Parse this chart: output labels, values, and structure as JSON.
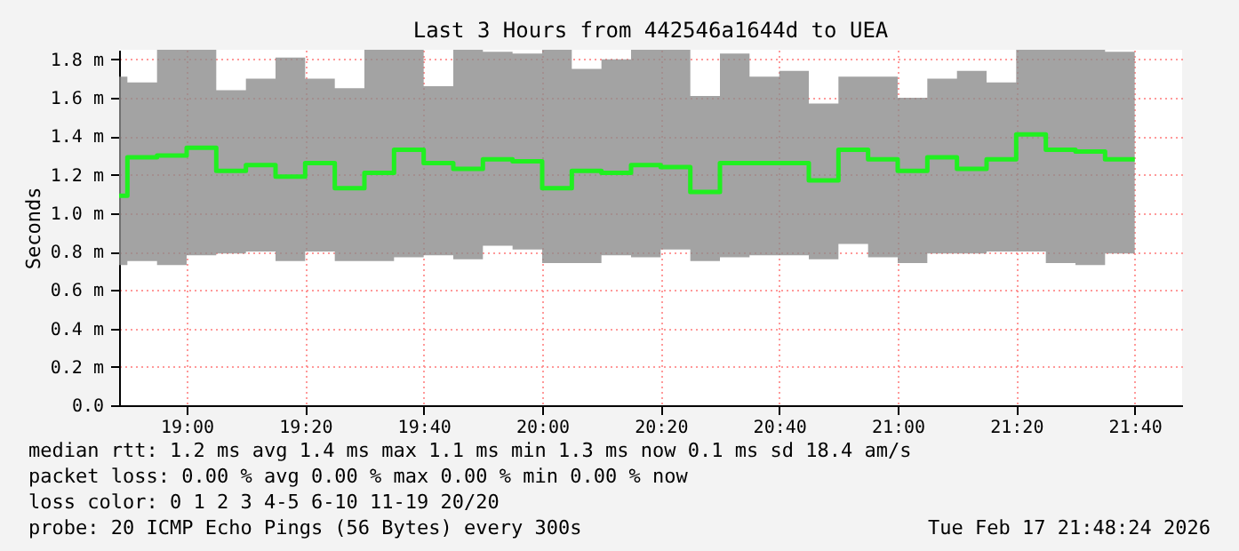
{
  "chart_data": {
    "type": "step",
    "title": "Last 3 Hours from 442546a1644d to UEA",
    "ylabel": "Seconds",
    "x": [
      18.81,
      18.8333,
      18.9167,
      19.0,
      19.0833,
      19.1667,
      19.25,
      19.3333,
      19.4167,
      19.5,
      19.5833,
      19.6667,
      19.75,
      19.8333,
      19.9167,
      20.0,
      20.0833,
      20.1667,
      20.25,
      20.3333,
      20.4167,
      20.5,
      20.5833,
      20.6667,
      20.75,
      20.8333,
      20.9167,
      21.0,
      21.0833,
      21.1667,
      21.25,
      21.3333,
      21.4167,
      21.5,
      21.5833,
      21.6667
    ],
    "series": [
      {
        "color": "#20f020",
        "values": [
          1.09,
          1.29,
          1.3,
          1.34,
          1.22,
          1.25,
          1.19,
          1.26,
          1.13,
          1.21,
          1.33,
          1.26,
          1.23,
          1.28,
          1.27,
          1.13,
          1.22,
          1.21,
          1.25,
          1.24,
          1.11,
          1.26,
          1.26,
          1.26,
          1.17,
          1.33,
          1.28,
          1.22,
          1.29,
          1.23,
          1.28,
          1.41,
          1.33,
          1.32,
          1.28,
          1.28
        ],
        "upper": [
          1.71,
          1.68,
          1.85,
          1.85,
          1.64,
          1.7,
          1.81,
          1.7,
          1.65,
          1.85,
          1.85,
          1.66,
          1.85,
          1.84,
          1.83,
          1.85,
          1.75,
          1.8,
          1.85,
          1.85,
          1.61,
          1.83,
          1.71,
          1.74,
          1.57,
          1.71,
          1.71,
          1.6,
          1.7,
          1.74,
          1.68,
          1.85,
          1.85,
          1.85,
          1.84,
          1.84
        ],
        "lower": [
          0.73,
          0.75,
          0.73,
          0.78,
          0.79,
          0.8,
          0.75,
          0.8,
          0.75,
          0.75,
          0.77,
          0.78,
          0.76,
          0.83,
          0.81,
          0.74,
          0.74,
          0.78,
          0.77,
          0.81,
          0.75,
          0.77,
          0.78,
          0.78,
          0.76,
          0.84,
          0.77,
          0.74,
          0.79,
          0.79,
          0.8,
          0.8,
          0.74,
          0.73,
          0.79,
          0.79
        ]
      }
    ],
    "xlim": [
      18.81,
      21.8
    ],
    "xticks": [
      {
        "value": 19.0,
        "label": "19:00"
      },
      {
        "value": 19.3333,
        "label": "19:20"
      },
      {
        "value": 19.6667,
        "label": "19:40"
      },
      {
        "value": 20.0,
        "label": "20:00"
      },
      {
        "value": 20.3333,
        "label": "20:20"
      },
      {
        "value": 20.6667,
        "label": "20:40"
      },
      {
        "value": 21.0,
        "label": "21:00"
      },
      {
        "value": 21.3333,
        "label": "21:20"
      },
      {
        "value": 21.6667,
        "label": "21:40"
      }
    ],
    "ylim": [
      0,
      1.85
    ],
    "yticks": [
      {
        "value": 0,
        "label": "0.0"
      },
      {
        "value": 0.2,
        "label": "0.2 m"
      },
      {
        "value": 0.4,
        "label": "0.4 m"
      },
      {
        "value": 0.6,
        "label": "0.6 m"
      },
      {
        "value": 0.8,
        "label": "0.8 m"
      },
      {
        "value": 1.0,
        "label": "1.0 m"
      },
      {
        "value": 1.2,
        "label": "1.2 m"
      },
      {
        "value": 1.4,
        "label": "1.4 m"
      },
      {
        "value": 1.6,
        "label": "1.6 m"
      },
      {
        "value": 1.8,
        "label": "1.8 m"
      }
    ],
    "grid": true,
    "line_style": "solid",
    "marker": "none",
    "annotations": [
      "median rtt:  1.2 ms avg  1.4 ms max  1.1 ms min  1.3 ms now  0.1 ms sd  18.4   am/s",
      "packet loss: 0.00 % avg  0.00 % max  0.00 % min  0.00 % now",
      "loss color:  0  1  2  3  4-5  6-10  11-19  20/20",
      "probe:       20 ICMP Echo Pings (56 Bytes) every 300s",
      "Tue Feb 17 21:48:24 2026"
    ]
  }
}
